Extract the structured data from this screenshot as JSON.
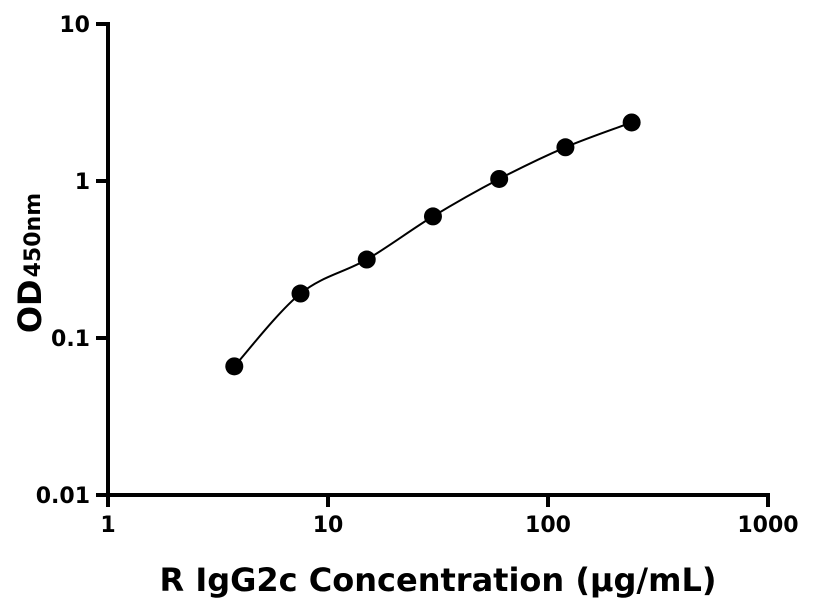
{
  "chart_data": {
    "type": "scatter",
    "title": "",
    "xlabel": "R IgG2c Concentration (μg/mL)",
    "ylabel_main": "OD",
    "ylabel_sub": "450nm",
    "x_scale": "log",
    "y_scale": "log",
    "xlim": [
      1,
      1000
    ],
    "ylim": [
      0.01,
      10
    ],
    "x_ticks": [
      1,
      10,
      100,
      1000
    ],
    "x_tick_labels": [
      "1",
      "10",
      "100",
      "1000"
    ],
    "y_ticks": [
      0.01,
      0.1,
      1,
      10
    ],
    "y_tick_labels": [
      "0.01",
      "0.1",
      "1",
      "10"
    ],
    "grid": false,
    "legend": "none",
    "points": {
      "x": [
        3.75,
        7.5,
        15,
        30,
        60,
        120,
        240
      ],
      "y": [
        0.066,
        0.192,
        0.316,
        0.595,
        1.03,
        1.64,
        2.36
      ]
    },
    "fit_curve": {
      "type": "smooth",
      "x_range": [
        3.75,
        240
      ]
    },
    "colors": {
      "marker": "#000000",
      "axis": "#000000",
      "curve": "#000000"
    }
  }
}
